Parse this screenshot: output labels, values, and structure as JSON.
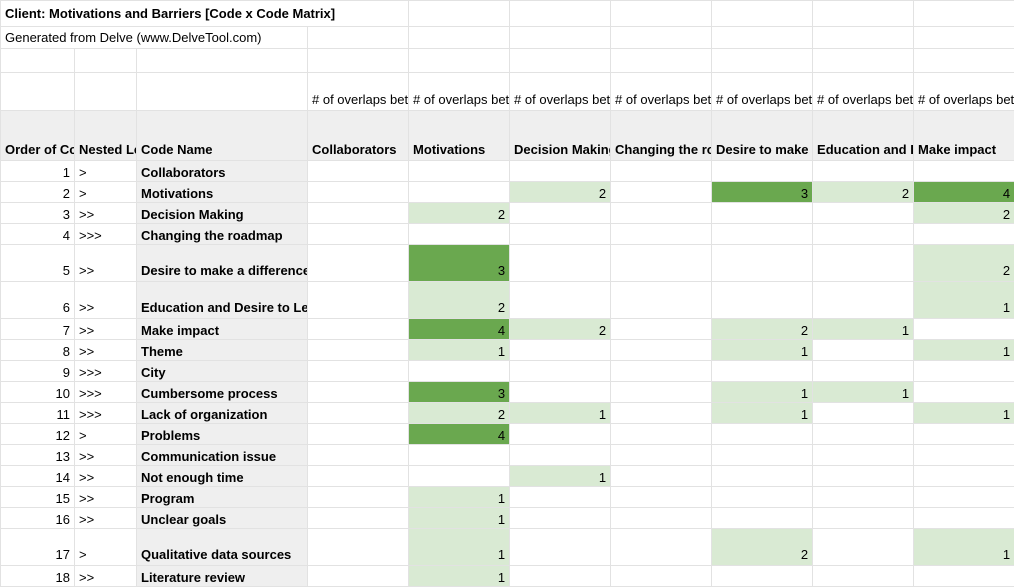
{
  "sheet": {
    "title": "Client: Motivations and Barriers [Code x Code Matrix]",
    "subtitle": "Generated from Delve (www.DelveTool.com)"
  },
  "headers": {
    "order": "Order of Code in List",
    "nested": "Nested Level",
    "code_name": "Code Name",
    "overlap_desc": "# of overlaps between codes",
    "matrix_columns": [
      "Collaborators",
      "Motivations",
      "Decision Making",
      "Changing the roadmap",
      "Desire to make a difference",
      "Education and Desire to Learn",
      "Make impact"
    ]
  },
  "rows": [
    {
      "order": "1",
      "level": ">",
      "name": "Collaborators",
      "cells": [
        "",
        "",
        "",
        "",
        "",
        "",
        ""
      ],
      "shade": [
        "",
        "",
        "",
        "",
        "",
        "",
        ""
      ]
    },
    {
      "order": "2",
      "level": ">",
      "name": "Motivations",
      "cells": [
        "",
        "",
        "2",
        "",
        "3",
        "2",
        "4"
      ],
      "shade": [
        "",
        "",
        "light",
        "",
        "dark",
        "light",
        "dark"
      ]
    },
    {
      "order": "3",
      "level": ">>",
      "name": "Decision Making",
      "cells": [
        "",
        "2",
        "",
        "",
        "",
        "",
        "2"
      ],
      "shade": [
        "",
        "light",
        "",
        "",
        "",
        "",
        "light"
      ]
    },
    {
      "order": "4",
      "level": ">>>",
      "name": "Changing the roadmap",
      "cells": [
        "",
        "",
        "",
        "",
        "",
        "",
        ""
      ],
      "shade": [
        "",
        "",
        "",
        "",
        "",
        "",
        ""
      ]
    },
    {
      "order": "5",
      "level": ">>",
      "name": "Desire to make a difference",
      "cells": [
        "",
        "3",
        "",
        "",
        "",
        "",
        "2"
      ],
      "shade": [
        "",
        "dark",
        "",
        "",
        "",
        "",
        "light"
      ]
    },
    {
      "order": "6",
      "level": ">>",
      "name": "Education and Desire to Learn",
      "cells": [
        "",
        "2",
        "",
        "",
        "",
        "",
        "1"
      ],
      "shade": [
        "",
        "light",
        "",
        "",
        "",
        "",
        "light"
      ]
    },
    {
      "order": "7",
      "level": ">>",
      "name": "Make impact",
      "cells": [
        "",
        "4",
        "2",
        "",
        "2",
        "1",
        ""
      ],
      "shade": [
        "",
        "dark",
        "light",
        "",
        "light",
        "light",
        ""
      ]
    },
    {
      "order": "8",
      "level": ">>",
      "name": "Theme",
      "cells": [
        "",
        "1",
        "",
        "",
        "1",
        "",
        "1"
      ],
      "shade": [
        "",
        "light",
        "",
        "",
        "light",
        "",
        "light"
      ]
    },
    {
      "order": "9",
      "level": ">>>",
      "name": "City",
      "cells": [
        "",
        "",
        "",
        "",
        "",
        "",
        ""
      ],
      "shade": [
        "",
        "",
        "",
        "",
        "",
        "",
        ""
      ]
    },
    {
      "order": "10",
      "level": ">>>",
      "name": "Cumbersome process",
      "cells": [
        "",
        "3",
        "",
        "",
        "1",
        "1",
        ""
      ],
      "shade": [
        "",
        "dark",
        "",
        "",
        "light",
        "light",
        ""
      ]
    },
    {
      "order": "11",
      "level": ">>>",
      "name": "Lack of organization",
      "cells": [
        "",
        "2",
        "1",
        "",
        "1",
        "",
        "1"
      ],
      "shade": [
        "",
        "light",
        "light",
        "",
        "light",
        "",
        "light"
      ]
    },
    {
      "order": "12",
      "level": ">",
      "name": "Problems",
      "cells": [
        "",
        "4",
        "",
        "",
        "",
        "",
        ""
      ],
      "shade": [
        "",
        "dark",
        "",
        "",
        "",
        "",
        ""
      ]
    },
    {
      "order": "13",
      "level": ">>",
      "name": "Communication issue",
      "cells": [
        "",
        "",
        "",
        "",
        "",
        "",
        ""
      ],
      "shade": [
        "",
        "",
        "",
        "",
        "",
        "",
        ""
      ]
    },
    {
      "order": "14",
      "level": ">>",
      "name": "Not enough time",
      "cells": [
        "",
        "",
        "1",
        "",
        "",
        "",
        ""
      ],
      "shade": [
        "",
        "",
        "light",
        "",
        "",
        "",
        ""
      ]
    },
    {
      "order": "15",
      "level": ">>",
      "name": "Program",
      "cells": [
        "",
        "1",
        "",
        "",
        "",
        "",
        ""
      ],
      "shade": [
        "",
        "light",
        "",
        "",
        "",
        "",
        ""
      ]
    },
    {
      "order": "16",
      "level": ">>",
      "name": "Unclear goals",
      "cells": [
        "",
        "1",
        "",
        "",
        "",
        "",
        ""
      ],
      "shade": [
        "",
        "light",
        "",
        "",
        "",
        "",
        ""
      ]
    },
    {
      "order": "17",
      "level": ">",
      "name": "Qualitative data sources",
      "cells": [
        "",
        "1",
        "",
        "",
        "2",
        "",
        "1"
      ],
      "shade": [
        "",
        "light",
        "",
        "",
        "light",
        "",
        "light"
      ]
    },
    {
      "order": "18",
      "level": ">>",
      "name": "Literature review",
      "cells": [
        "",
        "1",
        "",
        "",
        "",
        "",
        ""
      ],
      "shade": [
        "",
        "light",
        "",
        "",
        "",
        "",
        ""
      ]
    }
  ],
  "colors": {
    "header_gray": "#efefef",
    "light_green": "#d9ead3",
    "dark_green": "#6aa84f",
    "grid": "#e2e2e2"
  }
}
